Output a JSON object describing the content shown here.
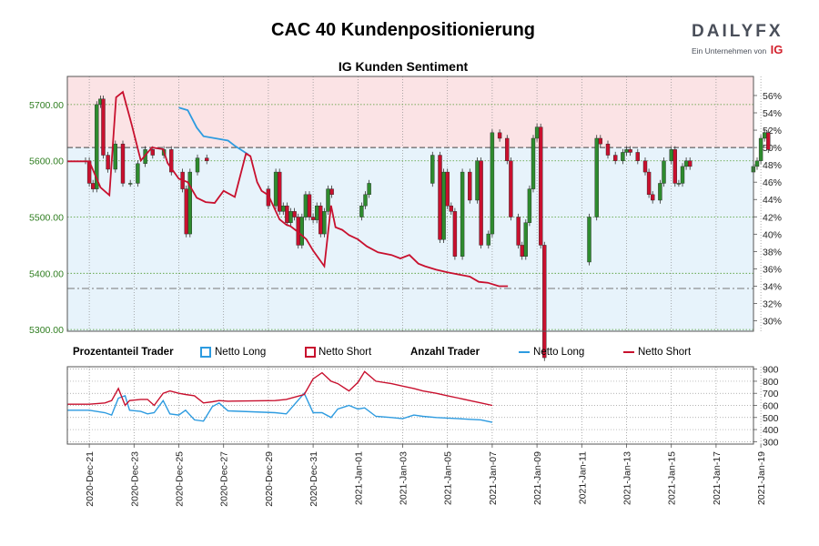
{
  "header": {
    "title": "CAC 40 Kundenpositionierung",
    "subtitle": "IG Kunden Sentiment",
    "logo_word": "DAILYFX",
    "logo_sub": "Ein Unternehmen von",
    "logo_ig": "IG"
  },
  "legend": {
    "pct_title": "Prozentanteil Trader",
    "pct_long": "Netto Long",
    "pct_short": "Netto Short",
    "cnt_title": "Anzahl Trader",
    "cnt_long": "Netto Long",
    "cnt_short": "Netto Short"
  },
  "colors": {
    "long": "#2d9be0",
    "short": "#c8102e",
    "long_fill": "#e7f3fb",
    "short_fill": "#fbe3e5",
    "up_candle": "#2e8b2e",
    "down_candle": "#c8102e",
    "price_axis": "#2e7d1f",
    "mid_line": "#444444"
  },
  "chart_data": [
    {
      "type": "candlestick+line",
      "title": "IG Kunden Sentiment",
      "x_tick_labels": [
        "2020-Dec-21",
        "2020-Dec-23",
        "2020-Dec-25",
        "2020-Dec-27",
        "2020-Dec-29",
        "2020-Dec-31",
        "2021-Jan-01",
        "2021-Jan-03",
        "2021-Jan-05",
        "2021-Jan-07",
        "2021-Jan-09",
        "2021-Jan-11",
        "2021-Jan-13",
        "2021-Jan-15",
        "2021-Jan-17",
        "2021-Jan-19"
      ],
      "price_axis": {
        "ticks": [
          "5300.00",
          "5400.00",
          "5500.00",
          "5600.00",
          "5700.00"
        ],
        "ylim": [
          5297,
          5750
        ]
      },
      "percent_axis": {
        "ticks": [
          "30%",
          "32%",
          "34%",
          "36%",
          "38%",
          "40%",
          "42%",
          "44%",
          "46%",
          "48%",
          "50%",
          "52%",
          "54%",
          "56%"
        ],
        "ylim": [
          28.8,
          58.2
        ]
      },
      "reference_lines": {
        "fifty_percent": 50,
        "price_level": 5373
      },
      "price_close": [
        [
          "2020-Dec-20 12:00",
          5600
        ],
        [
          "2020-Dec-20 20:00",
          5600
        ],
        [
          "2020-Dec-21 00:00",
          5560
        ],
        [
          "2020-Dec-21 04:00",
          5550
        ],
        [
          "2020-Dec-21 08:00",
          5700
        ],
        [
          "2020-Dec-21 12:00",
          5710
        ],
        [
          "2020-Dec-21 15:00",
          5610
        ],
        [
          "2020-Dec-21 20:00",
          5585
        ],
        [
          "2020-Dec-22 04:00",
          5630
        ],
        [
          "2020-Dec-22 12:00",
          5560
        ],
        [
          "2020-Dec-22 20:00",
          5560
        ],
        [
          "2020-Dec-23 04:00",
          5595
        ],
        [
          "2020-Dec-23 12:00",
          5620
        ],
        [
          "2020-Dec-23 20:00",
          5610
        ],
        [
          "2020-Dec-24 08:00",
          5620
        ],
        [
          "2020-Dec-24 16:00",
          5580
        ],
        [
          "2020-Dec-25 04:00",
          5550
        ],
        [
          "2020-Dec-25 08:00",
          5470
        ],
        [
          "2020-Dec-25 12:00",
          5580
        ],
        [
          "2020-Dec-25 20:00",
          5605
        ],
        [
          "2020-Dec-26 06:00",
          5600
        ],
        [
          "2020-Dec-27 20:00",
          5600
        ],
        [
          "2020-Dec-28 16:00",
          5550
        ],
        [
          "2020-Dec-29 00:00",
          5520
        ],
        [
          "2020-Dec-29 08:00",
          5580
        ],
        [
          "2020-Dec-29 12:00",
          5510
        ],
        [
          "2020-Dec-29 16:00",
          5520
        ],
        [
          "2020-Dec-29 20:00",
          5490
        ],
        [
          "2020-Dec-30 00:00",
          5510
        ],
        [
          "2020-Dec-30 04:00",
          5500
        ],
        [
          "2020-Dec-30 08:00",
          5450
        ],
        [
          "2020-Dec-30 12:00",
          5500
        ],
        [
          "2020-Dec-30 16:00",
          5540
        ],
        [
          "2020-Dec-30 20:00",
          5500
        ],
        [
          "2020-Dec-31 00:00",
          5495
        ],
        [
          "2020-Dec-31 04:00",
          5520
        ],
        [
          "2020-Dec-31 08:00",
          5470
        ],
        [
          "2020-Dec-31 12:00",
          5510
        ],
        [
          "2020-Dec-31 16:00",
          5550
        ],
        [
          "2020-Dec-31 20:00",
          5540
        ],
        [
          "2021-Jan-01 00:00",
          5500
        ],
        [
          "2021-Jan-01 04:00",
          5520
        ],
        [
          "2021-Jan-01 08:00",
          5540
        ],
        [
          "2021-Jan-01 12:00",
          5560
        ],
        [
          "2021-Jan-03 20:00",
          5560
        ],
        [
          "2021-Jan-04 08:00",
          5610
        ],
        [
          "2021-Jan-04 16:00",
          5460
        ],
        [
          "2021-Jan-04 20:00",
          5580
        ],
        [
          "2021-Jan-05 00:00",
          5520
        ],
        [
          "2021-Jan-05 04:00",
          5510
        ],
        [
          "2021-Jan-05 08:00",
          5430
        ],
        [
          "2021-Jan-05 16:00",
          5580
        ],
        [
          "2021-Jan-06 00:00",
          5530
        ],
        [
          "2021-Jan-06 08:00",
          5600
        ],
        [
          "2021-Jan-06 12:00",
          5450
        ],
        [
          "2021-Jan-06 20:00",
          5470
        ],
        [
          "2021-Jan-07 00:00",
          5650
        ],
        [
          "2021-Jan-07 08:00",
          5640
        ],
        [
          "2021-Jan-07 16:00",
          5600
        ],
        [
          "2021-Jan-07 20:00",
          5500
        ],
        [
          "2021-Jan-08 04:00",
          5450
        ],
        [
          "2021-Jan-08 08:00",
          5430
        ],
        [
          "2021-Jan-08 12:00",
          5490
        ],
        [
          "2021-Jan-08 16:00",
          5550
        ],
        [
          "2021-Jan-08 20:00",
          5640
        ],
        [
          "2021-Jan-09 00:00",
          5660
        ],
        [
          "2021-Jan-09 04:00",
          5450
        ],
        [
          "2021-Jan-09 08:00",
          5250
        ],
        [
          "2021-Jan-11 04:00",
          5420
        ],
        [
          "2021-Jan-11 08:00",
          5500
        ],
        [
          "2021-Jan-11 16:00",
          5640
        ],
        [
          "2021-Jan-11 20:00",
          5630
        ],
        [
          "2021-Jan-12 04:00",
          5610
        ],
        [
          "2021-Jan-12 12:00",
          5600
        ],
        [
          "2021-Jan-12 20:00",
          5615
        ],
        [
          "2021-Jan-13 00:00",
          5620
        ],
        [
          "2021-Jan-13 04:00",
          5615
        ],
        [
          "2021-Jan-13 12:00",
          5600
        ],
        [
          "2021-Jan-13 20:00",
          5580
        ],
        [
          "2021-Jan-14 00:00",
          5540
        ],
        [
          "2021-Jan-14 04:00",
          5530
        ],
        [
          "2021-Jan-14 12:00",
          5560
        ],
        [
          "2021-Jan-14 16:00",
          5600
        ],
        [
          "2021-Jan-15 00:00",
          5620
        ],
        [
          "2021-Jan-15 04:00",
          5560
        ],
        [
          "2021-Jan-15 08:00",
          5560
        ],
        [
          "2021-Jan-15 12:00",
          5590
        ],
        [
          "2021-Jan-15 16:00",
          5600
        ],
        [
          "2021-Jan-15 20:00",
          5590
        ],
        [
          "2021-Jan-18 12:00",
          5580
        ],
        [
          "2021-Jan-18 16:00",
          5590
        ],
        [
          "2021-Jan-18 20:00",
          5600
        ],
        [
          "2021-Jan-19 00:00",
          5640
        ],
        [
          "2021-Jan-19 04:00",
          5650
        ],
        [
          "2021-Jan-19 08:00",
          5620
        ]
      ],
      "series": [
        {
          "name": "Netto Long",
          "values": [
            [
              5.0,
              54.6
            ],
            [
              5.4,
              54.3
            ],
            [
              5.8,
              52.3
            ],
            [
              6.1,
              51.3
            ],
            [
              7.2,
              50.8
            ],
            [
              7.5,
              50.2
            ],
            [
              8.1,
              49.2
            ]
          ]
        },
        {
          "name": "Netto Short",
          "values": [
            [
              0.0,
              48.4
            ],
            [
              1.0,
              48.4
            ],
            [
              1.5,
              45.4
            ],
            [
              1.9,
              44.5
            ],
            [
              2.2,
              55.8
            ],
            [
              2.5,
              56.4
            ],
            [
              2.9,
              52.6
            ],
            [
              3.3,
              48.5
            ],
            [
              3.8,
              50.0
            ],
            [
              4.3,
              49.8
            ],
            [
              4.5,
              48.2
            ],
            [
              5.0,
              46.4
            ],
            [
              5.4,
              46.0
            ],
            [
              5.8,
              44.2
            ],
            [
              6.2,
              43.7
            ],
            [
              6.6,
              43.6
            ],
            [
              7.0,
              45.0
            ],
            [
              7.5,
              44.3
            ],
            [
              8.0,
              49.3
            ],
            [
              8.2,
              49.0
            ],
            [
              8.5,
              46.0
            ],
            [
              8.7,
              45.0
            ],
            [
              9.0,
              44.5
            ],
            [
              9.5,
              41.7
            ],
            [
              9.8,
              41.1
            ],
            [
              10.0,
              40.9
            ],
            [
              10.3,
              40.3
            ],
            [
              10.7,
              39.4
            ],
            [
              11.0,
              38.1
            ],
            [
              11.5,
              36.3
            ],
            [
              11.8,
              43.3
            ],
            [
              12.0,
              40.8
            ],
            [
              12.3,
              40.5
            ],
            [
              12.6,
              39.9
            ],
            [
              13.0,
              39.4
            ],
            [
              13.4,
              38.6
            ],
            [
              13.9,
              37.9
            ],
            [
              14.5,
              37.6
            ],
            [
              14.9,
              37.2
            ],
            [
              15.3,
              37.6
            ],
            [
              15.7,
              36.6
            ],
            [
              16.0,
              36.3
            ],
            [
              16.5,
              35.9
            ],
            [
              17.0,
              35.6
            ],
            [
              17.6,
              35.3
            ],
            [
              18.0,
              35.1
            ],
            [
              18.4,
              34.5
            ],
            [
              18.8,
              34.4
            ],
            [
              19.3,
              34.0
            ],
            [
              19.7,
              34.0
            ]
          ]
        }
      ]
    },
    {
      "type": "line",
      "title": "Anzahl Trader",
      "x_tick_labels": [
        "2020-Dec-21",
        "2020-Dec-23",
        "2020-Dec-25",
        "2020-Dec-27",
        "2020-Dec-29",
        "2020-Dec-31",
        "2021-Jan-01",
        "2021-Jan-03",
        "2021-Jan-05",
        "2021-Jan-07",
        "2021-Jan-09",
        "2021-Jan-11",
        "2021-Jan-13",
        "2021-Jan-15",
        "2021-Jan-17",
        "2021-Jan-19"
      ],
      "y_ticks": [
        "300",
        "400",
        "500",
        "600",
        "700",
        "800",
        "900"
      ],
      "ylim": [
        280,
        920
      ],
      "series": [
        {
          "name": "Netto Long",
          "values": [
            [
              0,
              560
            ],
            [
              1,
              560
            ],
            [
              1.7,
              540
            ],
            [
              2.0,
              520
            ],
            [
              2.3,
              660
            ],
            [
              2.6,
              680
            ],
            [
              2.8,
              560
            ],
            [
              3.3,
              550
            ],
            [
              3.6,
              530
            ],
            [
              3.9,
              540
            ],
            [
              4.3,
              640
            ],
            [
              4.6,
              530
            ],
            [
              5.0,
              520
            ],
            [
              5.3,
              560
            ],
            [
              5.7,
              480
            ],
            [
              6.1,
              470
            ],
            [
              6.5,
              590
            ],
            [
              6.8,
              620
            ],
            [
              7.2,
              555
            ],
            [
              9.3,
              540
            ],
            [
              9.8,
              530
            ],
            [
              10.6,
              700
            ],
            [
              11.0,
              540
            ],
            [
              11.4,
              540
            ],
            [
              11.8,
              500
            ],
            [
              12.1,
              570
            ],
            [
              12.6,
              600
            ],
            [
              13.0,
              570
            ],
            [
              13.3,
              580
            ],
            [
              13.8,
              510
            ],
            [
              14.5,
              500
            ],
            [
              15.0,
              490
            ],
            [
              15.5,
              520
            ],
            [
              15.9,
              510
            ],
            [
              16.5,
              500
            ],
            [
              17.0,
              495
            ],
            [
              17.5,
              490
            ],
            [
              18.0,
              485
            ],
            [
              18.5,
              480
            ],
            [
              19.0,
              460
            ]
          ]
        },
        {
          "name": "Netto Short",
          "values": [
            [
              0,
              610
            ],
            [
              1,
              610
            ],
            [
              1.7,
              620
            ],
            [
              2.0,
              640
            ],
            [
              2.3,
              740
            ],
            [
              2.6,
              600
            ],
            [
              2.8,
              640
            ],
            [
              3.3,
              650
            ],
            [
              3.6,
              650
            ],
            [
              3.9,
              600
            ],
            [
              4.3,
              700
            ],
            [
              4.6,
              720
            ],
            [
              5.0,
              700
            ],
            [
              5.3,
              690
            ],
            [
              5.7,
              680
            ],
            [
              6.1,
              620
            ],
            [
              6.5,
              630
            ],
            [
              6.8,
              640
            ],
            [
              7.2,
              635
            ],
            [
              9.3,
              640
            ],
            [
              9.8,
              650
            ],
            [
              10.6,
              690
            ],
            [
              11.0,
              820
            ],
            [
              11.4,
              870
            ],
            [
              11.8,
              800
            ],
            [
              12.1,
              780
            ],
            [
              12.6,
              720
            ],
            [
              13.0,
              790
            ],
            [
              13.3,
              880
            ],
            [
              13.8,
              800
            ],
            [
              14.5,
              780
            ],
            [
              15.0,
              760
            ],
            [
              15.5,
              740
            ],
            [
              15.9,
              720
            ],
            [
              16.5,
              700
            ],
            [
              17.0,
              680
            ],
            [
              17.5,
              660
            ],
            [
              18.0,
              640
            ],
            [
              18.5,
              620
            ],
            [
              19.0,
              600
            ]
          ]
        }
      ]
    }
  ]
}
